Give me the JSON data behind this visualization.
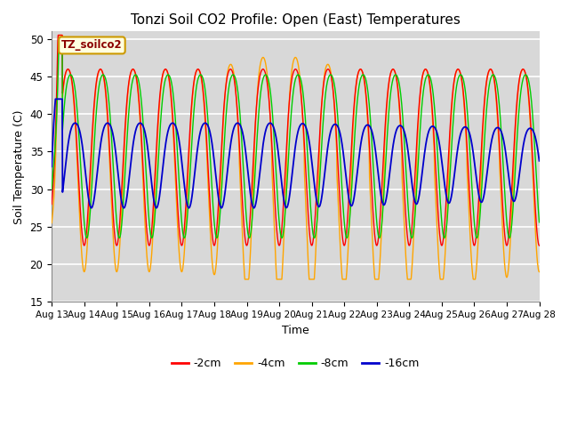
{
  "title": "Tonzi Soil CO2 Profile: Open (East) Temperatures",
  "xlabel": "Time",
  "ylabel": "Soil Temperature (C)",
  "ylim": [
    15,
    51
  ],
  "yticks": [
    15,
    20,
    25,
    30,
    35,
    40,
    45,
    50
  ],
  "colors": {
    "-2cm": "#ff0000",
    "-4cm": "#ffa500",
    "-8cm": "#00cc00",
    "-16cm": "#0000cc"
  },
  "legend_label": "TZ_soilco2",
  "plot_bg_color": "#d8d8d8",
  "fig_bg_color": "#ffffff",
  "x_tick_labels": [
    "Aug 13",
    "Aug 14",
    "Aug 15",
    "Aug 16",
    "Aug 17",
    "Aug 18",
    "Aug 19",
    "Aug 20",
    "Aug 21",
    "Aug 22",
    "Aug 23",
    "Aug 24",
    "Aug 25",
    "Aug 26",
    "Aug 27",
    "Aug 28"
  ],
  "n_days": 15,
  "depth_labels": [
    "-2cm",
    "-4cm",
    "-8cm",
    "-16cm"
  ]
}
